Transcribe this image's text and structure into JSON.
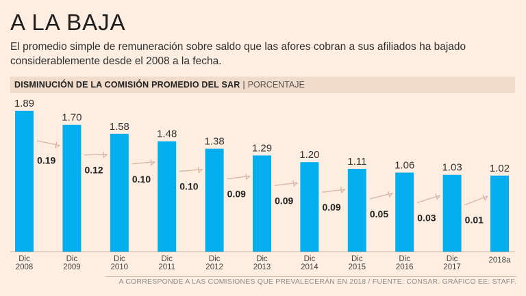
{
  "header": {
    "title": "A LA BAJA",
    "subtitle": "El promedio simple de remuneración sobre saldo que las afores cobran a sus afiliados ha bajado considerablemente desde el 2008 a la fecha."
  },
  "chart_header": {
    "main": "DISMINUCIÓN DE LA COMISIÓN PROMEDIO DEL SAR",
    "separator": "|",
    "unit": "PORCENTAJE"
  },
  "footer": {
    "note": "A CORRESPONDE A LAS COMISIONES QUE PREVALECERÁN EN 2018  / FUENTE: CONSAR. GRÁFICO EE: STAFF."
  },
  "colors": {
    "bar": "#04aeef",
    "arrow": "#d6b4a4",
    "background": "#fdeee1"
  },
  "chart_data": {
    "type": "bar",
    "title": "DISMINUCIÓN DE LA COMISIÓN PROMEDIO DEL SAR",
    "ylabel": "PORCENTAJE",
    "categories": [
      [
        "Dic",
        "2008"
      ],
      [
        "Dic",
        "2009"
      ],
      [
        "Dic",
        "2010"
      ],
      [
        "Dic",
        "2011"
      ],
      [
        "Dic",
        "2012"
      ],
      [
        "Dic",
        "2013"
      ],
      [
        "Dic",
        "2014"
      ],
      [
        "Dic",
        "2015"
      ],
      [
        "Dic",
        "2016"
      ],
      [
        "Dic",
        "2017"
      ],
      [
        "2018a"
      ]
    ],
    "values": [
      1.89,
      1.7,
      1.58,
      1.48,
      1.38,
      1.29,
      1.2,
      1.11,
      1.06,
      1.03,
      1.02
    ],
    "value_labels": [
      "1.89",
      "1.70",
      "1.58",
      "1.48",
      "1.38",
      "1.29",
      "1.20",
      "1.11",
      "1.06",
      "1.03",
      "1.02"
    ],
    "decreases": [
      "0.19",
      "0.12",
      "0.10",
      "0.10",
      "0.09",
      "0.09",
      "0.09",
      "0.05",
      "0.03",
      "0.01"
    ],
    "ylim": [
      0,
      1.89
    ],
    "grid": false,
    "legend": "none"
  }
}
